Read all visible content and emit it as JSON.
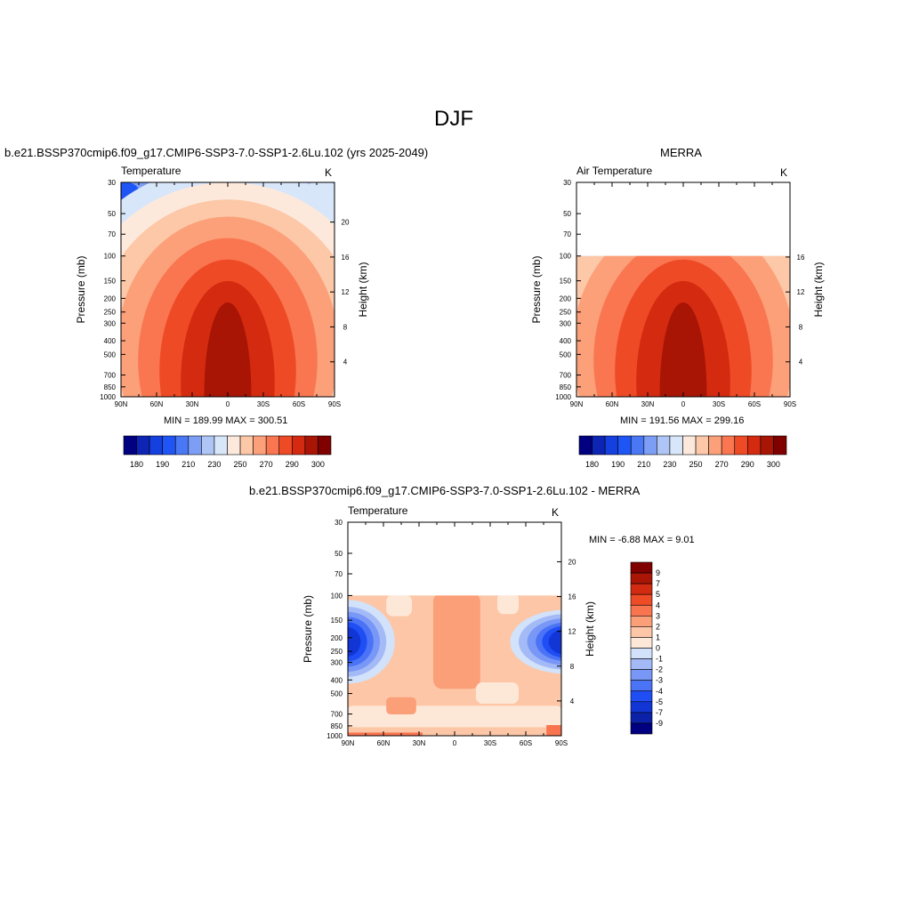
{
  "page": {
    "title": "DJF",
    "model_title": "b.e21.BSSP370cmip6.f09_g17.CMIP6-SSP3-7.0-SSP1-2.6Lu.102 (yrs 2025-2049)",
    "obs_title": "MERRA",
    "diff_title": "b.e21.BSSP370cmip6.f09_g17.CMIP6-SSP3-7.0-SSP1-2.6Lu.102 - MERRA"
  },
  "colors": {
    "abs_scale": [
      "#000080",
      "#0d24b5",
      "#1540e0",
      "#2055f5",
      "#4a78f5",
      "#7d9ef5",
      "#aec5f5",
      "#d8e6fa",
      "#fde9dc",
      "#fcc8a8",
      "#fca07a",
      "#f97650",
      "#ef4a26",
      "#d42a10",
      "#a81505",
      "#800000"
    ],
    "diff_scale": [
      "#000080",
      "#0a21a8",
      "#1236d6",
      "#1f4ef5",
      "#4a73f5",
      "#7897f7",
      "#a4baf7",
      "#d2e2fa",
      "#fde8d8",
      "#fdc6a6",
      "#fb9f79",
      "#f97550",
      "#ee4b27",
      "#d32b12",
      "#a91606",
      "#800000"
    ]
  },
  "chart_data": [
    {
      "type": "contour",
      "id": "model",
      "left_label": "Temperature",
      "right_label": "K",
      "ylabel": "Pressure (mb)",
      "y2label": "Height (km)",
      "x_ticks": [
        "90N",
        "60N",
        "30N",
        "0",
        "30S",
        "60S",
        "90S"
      ],
      "y_ticks": [
        30,
        50,
        70,
        100,
        150,
        200,
        250,
        300,
        400,
        500,
        700,
        850,
        1000
      ],
      "y2_ticks": [
        4,
        8,
        12,
        16,
        20
      ],
      "ylim": [
        30,
        1000
      ],
      "data_top_mb": 30,
      "stats": "MIN = 189.99  MAX = 300.51",
      "levels_labels": [
        "180",
        "190",
        "210",
        "230",
        "250",
        "270",
        "290",
        "300"
      ]
    },
    {
      "type": "contour",
      "id": "obs",
      "left_label": "Air Temperature",
      "right_label": "K",
      "ylabel": "Pressure (mb)",
      "y2label": "Height (km)",
      "x_ticks": [
        "90N",
        "60N",
        "30N",
        "0",
        "30S",
        "60S",
        "90S"
      ],
      "y_ticks": [
        30,
        50,
        70,
        100,
        150,
        200,
        250,
        300,
        400,
        500,
        700,
        850,
        1000
      ],
      "y2_ticks": [
        4,
        8,
        12,
        16
      ],
      "ylim": [
        30,
        1000
      ],
      "data_top_mb": 100,
      "stats": "MIN = 191.56  MAX = 299.16",
      "levels_labels": [
        "180",
        "190",
        "210",
        "230",
        "250",
        "270",
        "290",
        "300"
      ]
    },
    {
      "type": "contour",
      "id": "diff",
      "left_label": "Temperature",
      "right_label": "K",
      "ylabel": "Pressure (mb)",
      "y2label": "Height (km)",
      "x_ticks": [
        "90N",
        "60N",
        "30N",
        "0",
        "30S",
        "60S",
        "90S"
      ],
      "y_ticks": [
        30,
        50,
        70,
        100,
        150,
        200,
        250,
        300,
        400,
        500,
        700,
        850,
        1000
      ],
      "y2_ticks": [
        4,
        8,
        12,
        16,
        20
      ],
      "ylim": [
        30,
        1000
      ],
      "data_top_mb": 100,
      "stats": "MIN =  -6.88  MAX =   9.01",
      "levels_labels": [
        "9",
        "7",
        "5",
        "4",
        "3",
        "2",
        "1",
        "0",
        "-1",
        "-2",
        "-3",
        "-4",
        "-5",
        "-7",
        "-9"
      ]
    }
  ]
}
